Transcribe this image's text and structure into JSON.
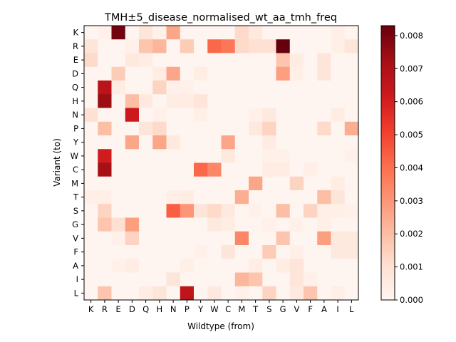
{
  "chart_data": {
    "type": "heatmap",
    "title": "TMH±5_disease_normalised_wt_aa_tmh_freq",
    "xlabel": "Wildtype (from)",
    "ylabel": "Variant (to)",
    "x_categories": [
      "K",
      "R",
      "E",
      "D",
      "Q",
      "H",
      "N",
      "P",
      "Y",
      "W",
      "C",
      "M",
      "T",
      "S",
      "G",
      "V",
      "F",
      "A",
      "I",
      "L"
    ],
    "y_categories": [
      "K",
      "R",
      "E",
      "D",
      "Q",
      "H",
      "N",
      "P",
      "Y",
      "W",
      "C",
      "M",
      "T",
      "S",
      "G",
      "V",
      "F",
      "A",
      "I",
      "L"
    ],
    "colormap": "Reds",
    "vmin": 0.0,
    "vmax": 0.0083,
    "colorbar_ticks": [
      "0.000",
      "0.001",
      "0.002",
      "0.003",
      "0.004",
      "0.005",
      "0.006",
      "0.007",
      "0.008"
    ],
    "values": [
      [
        0.0,
        0.0002,
        0.0081,
        0.0,
        0.0008,
        0.0002,
        0.0026,
        0.0,
        0.0,
        0.0,
        0.0,
        0.0012,
        0.0006,
        0.0,
        0.0,
        0.0,
        0.0,
        0.0,
        0.0003,
        0.0
      ],
      [
        0.0008,
        0.0,
        0.0,
        0.0002,
        0.0018,
        0.0022,
        0.0,
        0.0016,
        0.0,
        0.0042,
        0.0038,
        0.0012,
        0.001,
        0.001,
        0.0083,
        0.0,
        0.0,
        0.0,
        0.0003,
        0.0008
      ],
      [
        0.0012,
        0.0,
        0.0,
        0.0006,
        0.0004,
        0.0,
        0.0,
        0.0,
        0.0,
        0.0,
        0.0,
        0.0,
        0.0,
        0.0,
        0.0018,
        0.0004,
        0.0,
        0.0008,
        0.0,
        0.0
      ],
      [
        0.0,
        0.0,
        0.0016,
        0.0,
        0.0,
        0.0004,
        0.0026,
        0.0,
        0.0004,
        0.0,
        0.0,
        0.0,
        0.0,
        0.0,
        0.0028,
        0.0003,
        0.0,
        0.0008,
        0.0,
        0.0
      ],
      [
        0.0,
        0.0067,
        0.0004,
        0.0,
        0.0,
        0.0014,
        0.0002,
        0.0002,
        0.0,
        0.0,
        0.0,
        0.0,
        0.0,
        0.0,
        0.0,
        0.0,
        0.0,
        0.0,
        0.0,
        0.0
      ],
      [
        0.0,
        0.0074,
        0.0,
        0.002,
        0.0006,
        0.0,
        0.0004,
        0.0004,
        0.0008,
        0.0,
        0.0,
        0.0,
        0.0,
        0.0,
        0.0,
        0.0,
        0.0,
        0.0,
        0.0,
        0.0
      ],
      [
        0.001,
        0.0,
        0.0,
        0.0062,
        0.0,
        0.0002,
        0.0,
        0.0,
        0.0003,
        0.0,
        0.0,
        0.0,
        0.0002,
        0.0006,
        0.0,
        0.0,
        0.0,
        0.0,
        0.0004,
        0.0
      ],
      [
        0.0,
        0.002,
        0.0,
        0.0,
        0.0008,
        0.0012,
        0.0,
        0.0,
        0.0,
        0.0,
        0.0,
        0.0,
        0.0006,
        0.0014,
        0.0,
        0.0,
        0.0,
        0.0012,
        0.0,
        0.0024
      ],
      [
        0.0,
        0.0,
        0.0,
        0.0026,
        0.0,
        0.0026,
        0.0006,
        0.0,
        0.0,
        0.0,
        0.0026,
        0.0,
        0.0,
        0.0005,
        0.0,
        0.0,
        0.0,
        0.0,
        0.0,
        0.0
      ],
      [
        0.0,
        0.0061,
        0.0,
        0.0,
        0.0,
        0.0,
        0.0,
        0.0,
        0.0,
        0.0,
        0.0006,
        0.0,
        0.0,
        0.0002,
        0.0002,
        0.0,
        0.0,
        0.0,
        0.0,
        0.0002
      ],
      [
        0.0,
        0.0072,
        0.0,
        0.0,
        0.0,
        0.0,
        0.0,
        0.0,
        0.0042,
        0.0034,
        0.0,
        0.0,
        0.0,
        0.0004,
        0.0004,
        0.0,
        0.0003,
        0.0,
        0.0,
        0.0
      ],
      [
        0.0,
        0.0,
        0.0,
        0.0,
        0.0,
        0.0,
        0.0,
        0.0,
        0.0,
        0.0,
        0.0,
        0.0,
        0.0026,
        0.0,
        0.0,
        0.0014,
        0.0,
        0.0,
        0.0004,
        0.0
      ],
      [
        0.0003,
        0.0003,
        0.0,
        0.0,
        0.0,
        0.0,
        0.0003,
        0.0004,
        0.0,
        0.0,
        0.0,
        0.0024,
        0.0,
        0.0,
        0.0,
        0.0,
        0.0,
        0.002,
        0.0008,
        0.0
      ],
      [
        0.0,
        0.0014,
        0.0,
        0.0,
        0.0,
        0.0,
        0.0044,
        0.003,
        0.0008,
        0.0012,
        0.0006,
        0.0,
        0.0002,
        0.0,
        0.002,
        0.0,
        0.0014,
        0.0003,
        0.0003,
        0.0002
      ],
      [
        0.0,
        0.0018,
        0.001,
        0.0028,
        0.0,
        0.0,
        0.0,
        0.0,
        0.0,
        0.0006,
        0.0004,
        0.0,
        0.0,
        0.0002,
        0.0,
        0.0002,
        0.0,
        0.0003,
        0.0,
        0.0
      ],
      [
        0.0,
        0.0,
        0.0002,
        0.0014,
        0.0,
        0.0,
        0.0,
        0.0,
        0.0,
        0.0,
        0.0,
        0.0034,
        0.0,
        0.0,
        0.0018,
        0.0,
        0.0,
        0.0028,
        0.0006,
        0.0006
      ],
      [
        0.0,
        0.0,
        0.0,
        0.0,
        0.0,
        0.0,
        0.0,
        0.0,
        0.0002,
        0.0,
        0.0008,
        0.0,
        0.0,
        0.0016,
        0.0,
        0.0003,
        0.0,
        0.0,
        0.0006,
        0.0006
      ],
      [
        0.0,
        0.0,
        0.0002,
        0.0004,
        0.0,
        0.0,
        0.0,
        0.0003,
        0.0,
        0.0,
        0.0,
        0.0,
        0.0004,
        0.0,
        0.0004,
        0.0008,
        0.0,
        0.0,
        0.0,
        0.0
      ],
      [
        0.0,
        0.0,
        0.0,
        0.0,
        0.0,
        0.0,
        0.0008,
        0.0,
        0.0,
        0.0,
        0.0,
        0.0022,
        0.0018,
        0.0,
        0.0,
        0.0008,
        0.0002,
        0.0,
        0.0,
        0.0
      ],
      [
        0.0,
        0.0018,
        0.0,
        0.0,
        0.0004,
        0.0008,
        0.0,
        0.0066,
        0.0,
        0.0006,
        0.0,
        0.0002,
        0.0,
        0.0014,
        0.0,
        0.0006,
        0.0018,
        0.0,
        0.0003,
        0.0
      ]
    ]
  }
}
